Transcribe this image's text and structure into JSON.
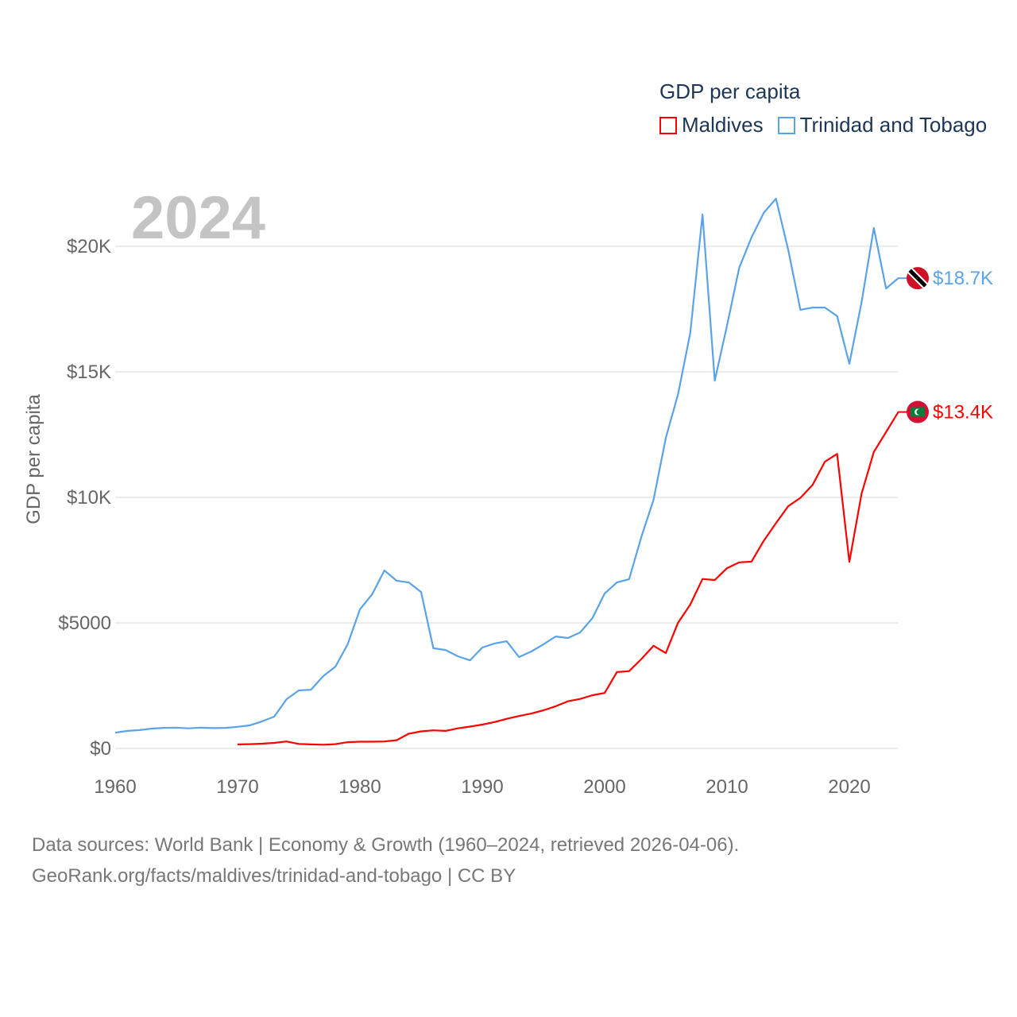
{
  "chart_data": {
    "type": "line",
    "title": "GDP per capita",
    "year_label": "2024",
    "xlabel": "",
    "ylabel": "GDP per capita",
    "xlim": [
      1960,
      2024
    ],
    "ylim": [
      0,
      22000
    ],
    "x_ticks": [
      1960,
      1970,
      1980,
      1990,
      2000,
      2010,
      2020
    ],
    "y_ticks": [
      0,
      5000,
      10000,
      15000,
      20000
    ],
    "y_tick_labels": [
      "$0",
      "$5000",
      "$10K",
      "$15K",
      "$20K"
    ],
    "grid": true,
    "legend_position": "top-right",
    "series": [
      {
        "name": "Maldives",
        "color": "#ff0000",
        "end_label": "$13.4K",
        "start_year": 1970,
        "values": [
          160,
          170,
          190,
          220,
          280,
          180,
          160,
          150,
          170,
          250,
          270,
          270,
          280,
          330,
          590,
          680,
          720,
          700,
          800,
          870,
          950,
          1050,
          1180,
          1290,
          1390,
          1520,
          1680,
          1880,
          1970,
          2120,
          2210,
          3040,
          3080,
          3560,
          4090,
          3800,
          5010,
          5730,
          6750,
          6710,
          7180,
          7410,
          7440,
          8270,
          8970,
          9650,
          9980,
          10500,
          11420,
          11730,
          7430,
          10150,
          11810,
          12600,
          13400
        ]
      },
      {
        "name": "Trinidad and Tobago",
        "color": "#5ba3e8",
        "end_label": "$18.7K",
        "start_year": 1960,
        "values": [
          630,
          700,
          730,
          790,
          820,
          830,
          800,
          830,
          810,
          820,
          860,
          920,
          1080,
          1270,
          1960,
          2310,
          2340,
          2880,
          3260,
          4150,
          5540,
          6140,
          7090,
          6680,
          6610,
          6230,
          3990,
          3920,
          3670,
          3510,
          4020,
          4180,
          4270,
          3640,
          3860,
          4150,
          4460,
          4400,
          4620,
          5190,
          6170,
          6610,
          6740,
          8420,
          9910,
          12370,
          14110,
          16550,
          21270,
          14650,
          16840,
          19150,
          20350,
          21330,
          21900,
          19870,
          17470,
          17560,
          17560,
          17220,
          15320,
          17780,
          20730,
          18320,
          18730
        ]
      }
    ]
  },
  "footer": {
    "line1": "Data sources: World Bank | Economy & Growth (1960–2024, retrieved 2026-04-06).",
    "line2": "GeoRank.org/facts/maldives/trinidad-and-tobago | CC BY"
  }
}
